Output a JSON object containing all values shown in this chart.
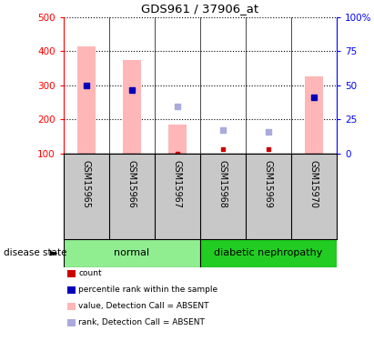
{
  "title": "GDS961 / 37906_at",
  "samples": [
    "GSM15965",
    "GSM15966",
    "GSM15967",
    "GSM15968",
    "GSM15969",
    "GSM15970"
  ],
  "bar_tops": [
    415,
    375,
    185,
    null,
    null,
    325
  ],
  "bar_bottoms": [
    100,
    100,
    100,
    null,
    null,
    100
  ],
  "rank_dots_y": [
    300,
    287,
    null,
    null,
    null,
    265
  ],
  "absent_value_y": [
    null,
    null,
    237,
    168,
    162,
    null
  ],
  "count_y": [
    null,
    null,
    100,
    112,
    112,
    null
  ],
  "ylim_left": [
    100,
    500
  ],
  "ylim_right": [
    0,
    100
  ],
  "yticks_left": [
    100,
    200,
    300,
    400,
    500
  ],
  "yticks_right": [
    0,
    25,
    50,
    75,
    100
  ],
  "yticklabels_right": [
    "0",
    "25",
    "50",
    "75",
    "100%"
  ],
  "bar_color": "#FFB6B6",
  "rank_dot_color": "#0000BB",
  "absent_value_color": "#AAAADD",
  "count_dot_color": "#CC0000",
  "label_bg_color": "#C8C8C8",
  "group1_color": "#90EE90",
  "group2_color": "#22CC22",
  "group1_label": "normal",
  "group2_label": "diabetic nephropathy",
  "legend_labels": [
    "count",
    "percentile rank within the sample",
    "value, Detection Call = ABSENT",
    "rank, Detection Call = ABSENT"
  ],
  "legend_colors": [
    "#CC0000",
    "#0000BB",
    "#FFB6B6",
    "#AAAADD"
  ]
}
